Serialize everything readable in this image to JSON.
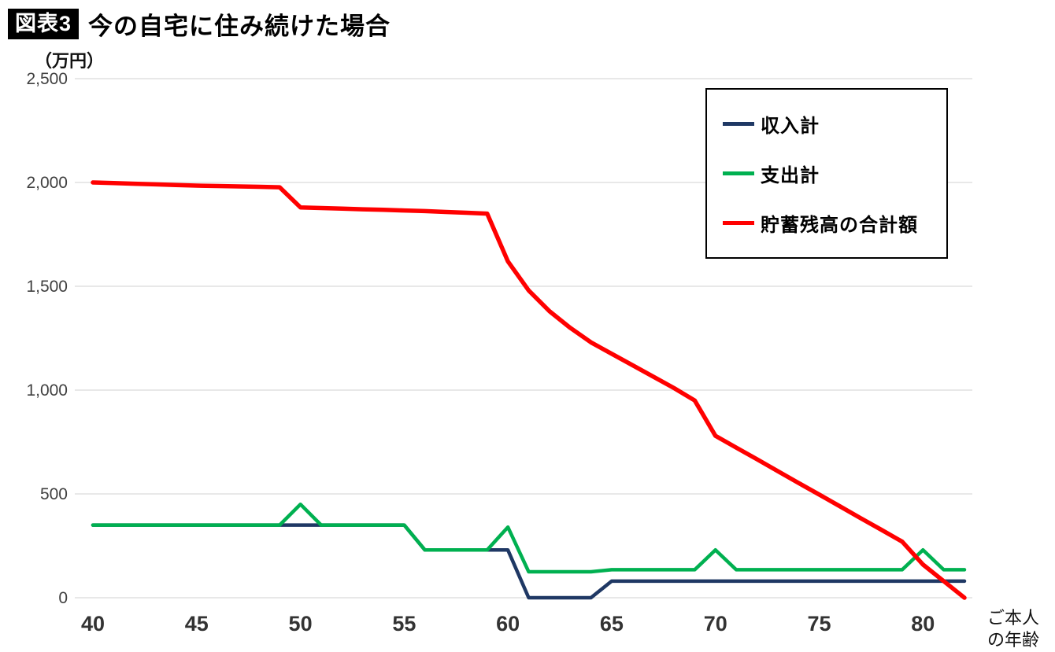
{
  "header": {
    "badge": "図表3",
    "title": "今の自宅に住み続けた場合",
    "unit_label": "（万円）"
  },
  "x_axis_note": {
    "line1": "ご本人",
    "line2": "の年齢"
  },
  "chart_data": {
    "type": "line",
    "title": "今の自宅に住み続けた場合",
    "ylabel": "（万円）",
    "xlabel": "ご本人の年齢",
    "ylim": [
      0,
      2500
    ],
    "yticks": [
      0,
      500,
      1000,
      1500,
      2000,
      2500
    ],
    "ytick_labels": [
      "0",
      "500",
      "1,000",
      "1,500",
      "2,000",
      "2,500"
    ],
    "xticks": [
      40,
      45,
      50,
      55,
      60,
      65,
      70,
      75,
      80
    ],
    "grid": "horizontal",
    "gridline_color": "#d9d9d9",
    "legend_position": "top-right",
    "x": [
      40,
      41,
      42,
      43,
      44,
      45,
      46,
      47,
      48,
      49,
      50,
      51,
      52,
      53,
      54,
      55,
      56,
      57,
      58,
      59,
      60,
      61,
      62,
      63,
      64,
      65,
      66,
      67,
      68,
      69,
      70,
      71,
      72,
      73,
      74,
      75,
      76,
      77,
      78,
      79,
      80,
      81,
      82
    ],
    "series": [
      {
        "name": "収入計",
        "color": "#1f3864",
        "values": [
          350,
          350,
          350,
          350,
          350,
          350,
          350,
          350,
          350,
          350,
          350,
          350,
          350,
          350,
          350,
          350,
          230,
          230,
          230,
          230,
          230,
          0,
          0,
          0,
          0,
          80,
          80,
          80,
          80,
          80,
          80,
          80,
          80,
          80,
          80,
          80,
          80,
          80,
          80,
          80,
          80,
          80,
          80
        ]
      },
      {
        "name": "支出計",
        "color": "#00b050",
        "values": [
          350,
          350,
          350,
          350,
          350,
          350,
          350,
          350,
          350,
          350,
          450,
          350,
          350,
          350,
          350,
          350,
          230,
          230,
          230,
          230,
          340,
          125,
          125,
          125,
          125,
          135,
          135,
          135,
          135,
          135,
          230,
          135,
          135,
          135,
          135,
          135,
          135,
          135,
          135,
          135,
          230,
          135,
          135
        ]
      },
      {
        "name": "貯蓄残高の合計額",
        "color": "#ff0000",
        "values": [
          2000,
          1997,
          1994,
          1991,
          1988,
          1985,
          1983,
          1981,
          1979,
          1977,
          1880,
          1877,
          1874,
          1871,
          1868,
          1865,
          1862,
          1858,
          1854,
          1850,
          1620,
          1480,
          1380,
          1300,
          1230,
          1175,
          1120,
          1065,
          1010,
          950,
          780,
          723,
          667,
          610,
          553,
          497,
          440,
          383,
          327,
          270,
          160,
          80,
          0
        ]
      }
    ]
  }
}
